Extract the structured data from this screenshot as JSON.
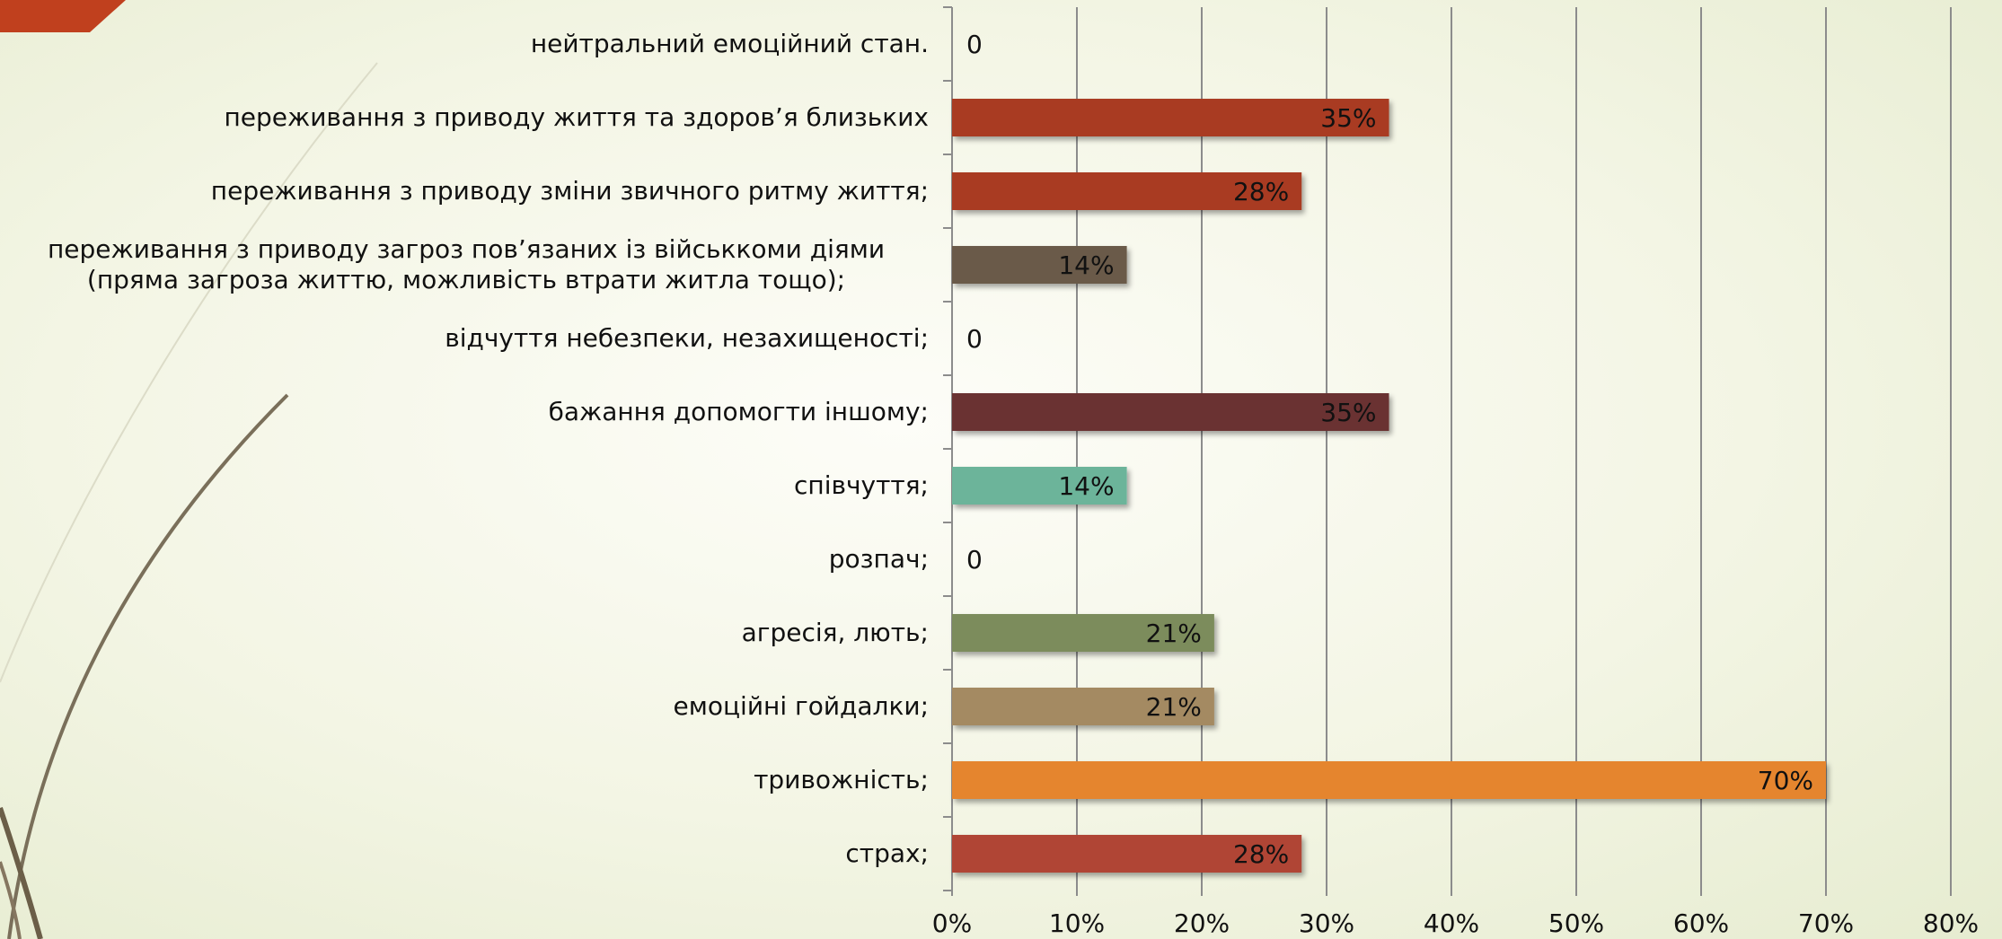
{
  "chart_data": {
    "type": "hbar",
    "categories": [
      "нейтральний емоційний стан.",
      "переживання з приводу життя та здоров’я близьких",
      "переживання з приводу зміни звичного ритму життя;",
      "переживання з приводу загроз пов’язаних із військкоми діями (пряма загроза життю, можливість втрати житла тощо);",
      "відчуття небезпеки, незахищеності;",
      "бажання допомогти іншому;",
      "співчуття;",
      "розпач;",
      "агресія, лють;",
      "емоційні гойдалки;",
      "тривожність;",
      "страх;"
    ],
    "values": [
      0,
      35,
      28,
      14,
      0,
      35,
      14,
      0,
      21,
      21,
      70,
      28
    ],
    "value_labels": [
      "0",
      "35%",
      "28%",
      "14%",
      "0",
      "35%",
      "14%",
      "0",
      "21%",
      "21%",
      "70%",
      "28%"
    ],
    "colors": [
      "#a93a20",
      "#a93a20",
      "#a93a20",
      "#6a5a48",
      "#a93a20",
      "#6b3332",
      "#6cb49a",
      "#a93a20",
      "#7b8c5c",
      "#a48a62",
      "#e5852f",
      "#b04535"
    ],
    "xlim": [
      0,
      80
    ],
    "xticks": [
      {
        "value": 0,
        "label": "0%"
      },
      {
        "value": 10,
        "label": "10%"
      },
      {
        "value": 20,
        "label": "20%"
      },
      {
        "value": 30,
        "label": "30%"
      },
      {
        "value": 40,
        "label": "40%"
      },
      {
        "value": 50,
        "label": "50%"
      },
      {
        "value": 60,
        "label": "60%"
      },
      {
        "value": 70,
        "label": "70%"
      },
      {
        "value": 80,
        "label": "80%"
      }
    ],
    "grid": true
  }
}
